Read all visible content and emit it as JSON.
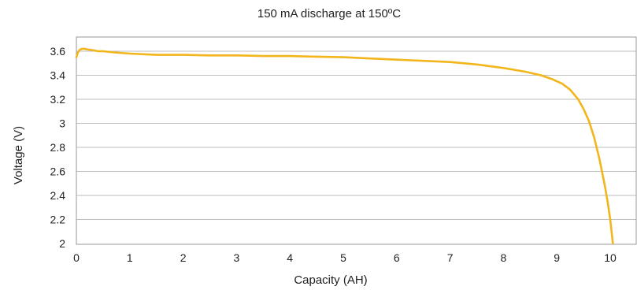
{
  "chart_data": {
    "type": "line",
    "title": "150 mA discharge at 150ºC",
    "xlabel": "Capacity (AH)",
    "ylabel": "Voltage (V)",
    "xlim": [
      0,
      10.5
    ],
    "ylim": [
      2,
      3.7
    ],
    "x_ticks": [
      "0",
      "1",
      "2",
      "3",
      "4",
      "5",
      "6",
      "7",
      "8",
      "9",
      "10"
    ],
    "y_ticks": [
      "2",
      "2.2",
      "2.4",
      "2.6",
      "2.8",
      "3",
      "3.2",
      "3.4",
      "3.6"
    ],
    "grid": "horizontal",
    "legend": "none",
    "line_color": "#F2B51C",
    "series": [
      {
        "x": [
          0,
          0.03,
          0.06,
          0.1,
          0.15,
          0.2,
          0.3,
          0.4,
          0.5,
          0.7,
          1.0,
          1.5,
          2.0,
          2.5,
          3.0,
          3.5,
          4.0,
          4.5,
          5.0,
          5.5,
          6.0,
          6.5,
          7.0,
          7.5,
          8.0,
          8.4,
          8.7,
          8.9,
          9.1,
          9.25,
          9.4,
          9.5,
          9.6,
          9.7,
          9.8,
          9.9,
          9.95,
          10.0,
          10.05
        ],
        "y": [
          3.55,
          3.59,
          3.61,
          3.62,
          3.62,
          3.615,
          3.61,
          3.6,
          3.6,
          3.59,
          3.58,
          3.57,
          3.57,
          3.565,
          3.565,
          3.56,
          3.56,
          3.555,
          3.55,
          3.54,
          3.53,
          3.52,
          3.51,
          3.49,
          3.46,
          3.43,
          3.4,
          3.37,
          3.33,
          3.28,
          3.2,
          3.12,
          3.02,
          2.88,
          2.7,
          2.48,
          2.35,
          2.2,
          2.0
        ]
      }
    ]
  }
}
